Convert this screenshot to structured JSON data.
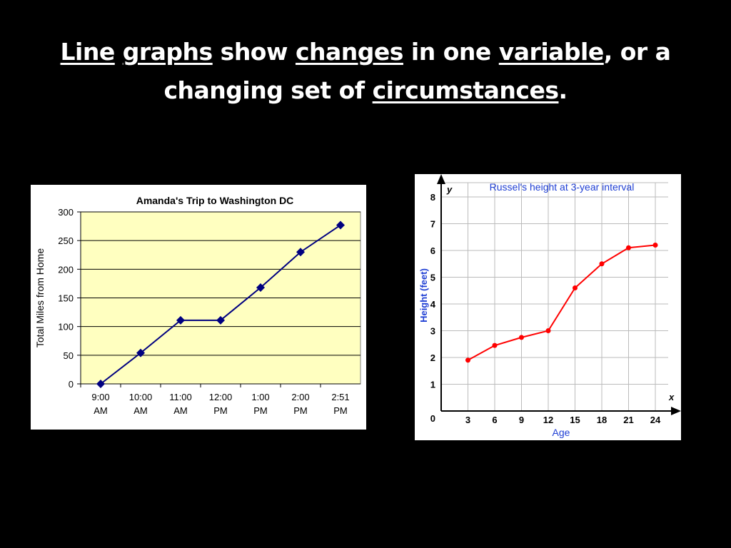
{
  "slide": {
    "title_line1": [
      {
        "text": "Line",
        "u": true
      },
      {
        "text": " ",
        "u": false
      },
      {
        "text": "graphs",
        "u": true
      },
      {
        "text": " show ",
        "u": false
      },
      {
        "text": "changes",
        "u": true
      },
      {
        "text": " in one ",
        "u": false
      },
      {
        "text": "variable",
        "u": true
      },
      {
        "text": ", or a",
        "u": false
      }
    ],
    "title_line2": [
      {
        "text": "changing set of ",
        "u": false
      },
      {
        "text": "circumstances",
        "u": true
      },
      {
        "text": ".",
        "u": false
      }
    ]
  },
  "chart_data": [
    {
      "type": "line",
      "title": "Amanda's Trip to Washington DC",
      "xlabel": "",
      "ylabel": "Total Miles from Home",
      "categories": [
        [
          "9:00",
          "AM"
        ],
        [
          "10:00",
          "AM"
        ],
        [
          "11:00",
          "AM"
        ],
        [
          "12:00",
          "PM"
        ],
        [
          "1:00",
          "PM"
        ],
        [
          "2:00",
          "PM"
        ],
        [
          "2:51",
          "PM"
        ]
      ],
      "values": [
        0,
        54,
        111,
        111,
        168,
        230,
        277
      ],
      "ylim": [
        0,
        300
      ],
      "yticks": [
        0,
        50,
        100,
        150,
        200,
        250,
        300
      ],
      "grid": true,
      "colors": {
        "plot_bg": "#ffffc0",
        "line": "#000080",
        "marker": "#000080"
      }
    },
    {
      "type": "line",
      "title": "Russel's height at 3-year interval",
      "xlabel": "Age",
      "ylabel": "Height (feet)",
      "x_axis_letter": "x",
      "y_axis_letter": "y",
      "x": [
        3,
        6,
        9,
        12,
        15,
        18,
        21,
        24
      ],
      "y": [
        1.9,
        2.45,
        2.75,
        3.0,
        4.6,
        5.5,
        6.1,
        6.2
      ],
      "xticks": [
        0,
        3,
        6,
        9,
        12,
        15,
        18,
        21,
        24
      ],
      "yticks": [
        1,
        2,
        3,
        4,
        5,
        6,
        7,
        8
      ],
      "xlim": [
        0,
        24
      ],
      "ylim": [
        0,
        8
      ],
      "grid": true,
      "colors": {
        "line": "#ff0000",
        "marker": "#ff0000",
        "title": "#1f3fd4",
        "axis_label": "#1f3fd4"
      }
    }
  ]
}
